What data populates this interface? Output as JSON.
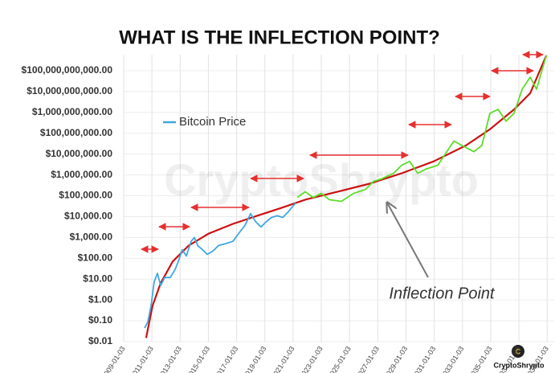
{
  "chart_data": {
    "type": "line",
    "title": "WHAT IS THE INFLECTION POINT?",
    "log_y": true,
    "grid": true,
    "xlim": [
      2009,
      2039.5
    ],
    "ylim": [
      0.01,
      100000000000
    ],
    "xticks": [
      {
        "value": 2009,
        "label": "2009-01-03"
      },
      {
        "value": 2011,
        "label": "2011-01-03"
      },
      {
        "value": 2013,
        "label": "2013-01-03"
      },
      {
        "value": 2015,
        "label": "2015-01-03"
      },
      {
        "value": 2017,
        "label": "2017-01-03"
      },
      {
        "value": 2019,
        "label": "2019-01-03"
      },
      {
        "value": 2021,
        "label": "2021-01-03"
      },
      {
        "value": 2023,
        "label": "2023-01-03"
      },
      {
        "value": 2025,
        "label": "2025-01-03"
      },
      {
        "value": 2027,
        "label": "2027-01-03"
      },
      {
        "value": 2029,
        "label": "2029-01-03"
      },
      {
        "value": 2031,
        "label": "2031-01-03"
      },
      {
        "value": 2033,
        "label": "2033-01-03"
      },
      {
        "value": 2035,
        "label": "2035-01-03"
      },
      {
        "value": 2037,
        "label": "2037-01-03"
      },
      {
        "value": 2039,
        "label": "2039-01-03"
      }
    ],
    "yticks": [
      {
        "value": 0.01,
        "label": "$0.01"
      },
      {
        "value": 0.1,
        "label": "$0.10"
      },
      {
        "value": 1,
        "label": "$1.00"
      },
      {
        "value": 10,
        "label": "$10.00"
      },
      {
        "value": 100,
        "label": "$100.00"
      },
      {
        "value": 1000,
        "label": "$1,000.00"
      },
      {
        "value": 10000,
        "label": "$10,000.00"
      },
      {
        "value": 100000,
        "label": "$100,000.00"
      },
      {
        "value": 1000000,
        "label": "$1,000,000.00"
      },
      {
        "value": 10000000,
        "label": "$10,000,000.00"
      },
      {
        "value": 100000000,
        "label": "$100,000,000.00"
      },
      {
        "value": 1000000000,
        "label": "$1,000,000,000.00"
      },
      {
        "value": 10000000000,
        "label": "$10,000,000,000.00"
      },
      {
        "value": 100000000000,
        "label": "$100,000,000,000.00"
      }
    ],
    "series": [
      {
        "name": "Bitcoin Price",
        "color": "#3fa7e0",
        "x": [
          2010.48,
          2010.71,
          2010.94,
          2011.16,
          2011.39,
          2011.62,
          2011.9,
          2012.3,
          2012.64,
          2012.87,
          2013.15,
          2013.44,
          2013.78,
          2014.01,
          2014.24,
          2014.58,
          2014.92,
          2015.32,
          2015.72,
          2016.17,
          2016.74,
          2017.14,
          2017.59,
          2017.99,
          2018.33,
          2018.73,
          2019.13,
          2019.47,
          2019.87,
          2020.27,
          2020.72,
          2021.18
        ],
        "values": [
          0.045,
          0.09,
          0.54,
          7.6,
          19,
          4.9,
          12,
          12,
          29,
          70,
          260,
          130,
          650,
          1000,
          410,
          260,
          155,
          220,
          410,
          490,
          650,
          1550,
          3800,
          14000,
          5900,
          3200,
          5900,
          9100,
          11000,
          9100,
          19000,
          45000
        ]
      },
      {
        "color": "#5ddc2a",
        "x": [
          2021.29,
          2021.86,
          2022.43,
          2023.0,
          2023.57,
          2024.42,
          2025.28,
          2026.13,
          2026.7,
          2027.27,
          2028.12,
          2028.69,
          2029.26,
          2029.83,
          2030.4,
          2031.25,
          2031.82,
          2032.39,
          2032.96,
          2033.81,
          2034.38,
          2034.95,
          2035.52,
          2036.09,
          2036.66,
          2037.23,
          2037.8,
          2038.25,
          2038.94
        ],
        "values": [
          83000,
          155000,
          83000,
          130000,
          65000,
          54000,
          130000,
          200000,
          490000,
          650000,
          1200000,
          2900000,
          4500000,
          1200000,
          1900000,
          2900000,
          11000000,
          42000000,
          26000000,
          13000000,
          26000000,
          910000000,
          1400000000,
          380000000,
          910000000,
          13000000000,
          49000000000,
          13000000000,
          540000000000
        ]
      },
      {
        "color": "#cc1111",
        "x": [
          2010.59,
          2011.05,
          2011.62,
          2012.47,
          2013.61,
          2015.03,
          2016.74,
          2018.45,
          2020.16,
          2021.86,
          2024.14,
          2026.42,
          2028.69,
          2030.97,
          2033.25,
          2034.95,
          2036.66,
          2037.8,
          2038.94
        ],
        "values": [
          0.015,
          0.54,
          6.4,
          70,
          410,
          1550,
          4500,
          11000,
          26000,
          65000,
          155000,
          380000,
          1200000,
          4500000,
          26000000,
          155000000,
          1400000000,
          8300000000,
          540000000000
        ]
      }
    ],
    "annotation": "Inflection Point",
    "watermark": "CryptoShrypto",
    "logo_text": "CryptoShrypto"
  }
}
